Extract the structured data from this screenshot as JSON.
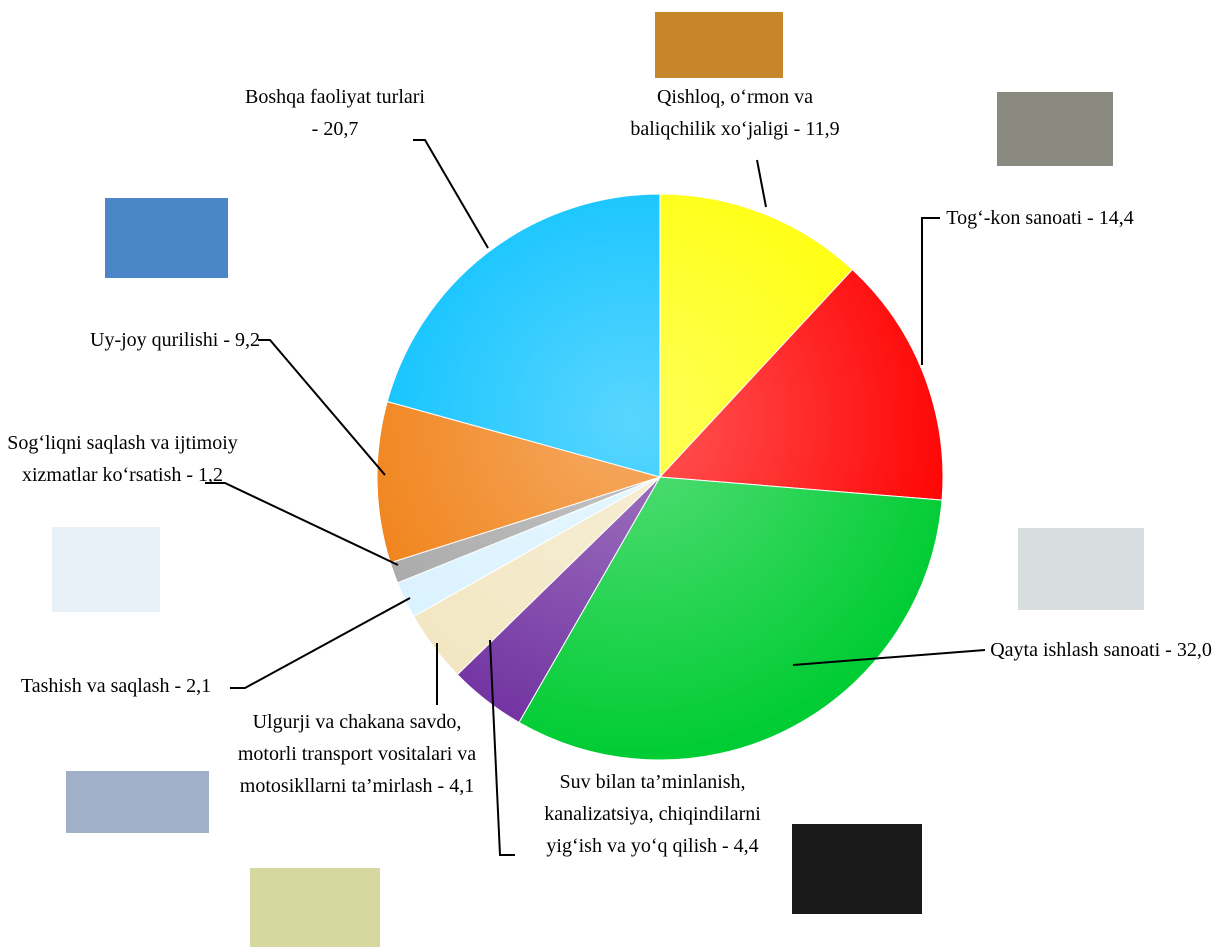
{
  "chart_data": {
    "type": "pie",
    "categories": [
      "Qishloq, o‘rmon va baliqchilik xo‘jaligi -",
      "Tog‘-kon sanoati -",
      "Qayta ishlash sanoati -",
      "Suv bilan ta’minlanish, kanalizatsiya, chiqindilarni yig‘ish va yo‘q qilish -",
      "Ulgurji va chakana savdo, motorli transport vositalari va motosikllarni ta’mirlash -",
      "Tashish va saqlash -",
      "Sog‘liqni saqlash va ijtimoiy xizmatlar ko‘rsatish -",
      "Uy-joy qurilishi -",
      "Boshqa faoliyat turlari -"
    ],
    "values": [
      11.9,
      14.4,
      32.0,
      4.4,
      4.1,
      2.1,
      1.2,
      9.2,
      20.7
    ],
    "value_labels": [
      "11,9",
      "14,4",
      "32,0",
      "4,4",
      "4,1",
      "2,1",
      "1,2",
      "9,2",
      "20,7"
    ],
    "colors": [
      "#ffff00",
      "#ff0000",
      "#00cc33",
      "#7030a0",
      "#f2e6c0",
      "#d9f2ff",
      "#a6a6a6",
      "#f07d10",
      "#00bfff"
    ]
  }
}
